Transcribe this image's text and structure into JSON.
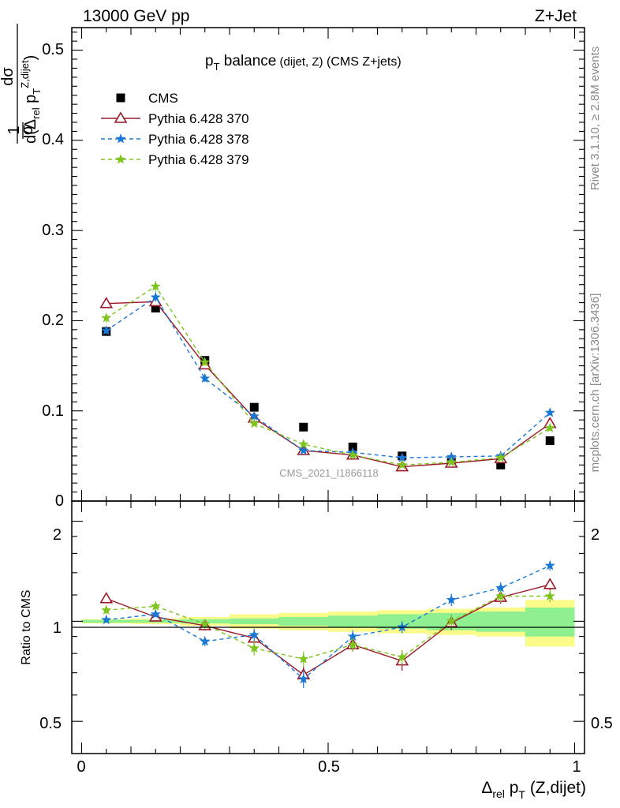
{
  "header": {
    "left": "13000 GeV pp",
    "right": "Z+Jet"
  },
  "side_labels": {
    "rivet": "Rivet 3.1.10, ≥ 2.8M events",
    "mcplots": "mcplots.cern.ch [arXiv:1306.3436]"
  },
  "title": {
    "main": "p",
    "main_sub": "T",
    "main_rest": " balance",
    "small": " (dijet, Z)",
    "rest": " (CMS Z+jets)"
  },
  "watermark": "CMS_2021_I1866118",
  "legend": {
    "items": [
      {
        "label": "CMS",
        "marker": "square",
        "color": "#000000",
        "dashed": false
      },
      {
        "label": "Pythia 6.428 370",
        "marker": "triangle",
        "color": "#9a1a2a",
        "dashed": false
      },
      {
        "label": "Pythia 6.428 378",
        "marker": "star",
        "color": "#1a78d4",
        "dashed": true
      },
      {
        "label": "Pythia 6.428 379",
        "marker": "star",
        "color": "#7ec41e",
        "dashed": true
      }
    ]
  },
  "axes": {
    "main_ylabel": "1/σ dσ/d(Δrel pT Z,dijet)",
    "main_ylabel_parts": {
      "one": "1",
      "sigma": "σ",
      "dsigma": "dσ",
      "d_paren": "d(Δ",
      "rel": "rel",
      "p": " p",
      "T": "T",
      "sup": "Z,dijet",
      "close": ")"
    },
    "ratio_ylabel": "Ratio to CMS",
    "xlabel_parts": {
      "delta": "Δ",
      "rel": "rel",
      "p": " p",
      "T": "T",
      "rest": " (Z,dijet)"
    },
    "main_yticks": [
      "0",
      "0.1",
      "0.2",
      "0.3",
      "0.4",
      "0.5"
    ],
    "ratio_yticks_left": [
      "0.5",
      "1",
      "2"
    ],
    "ratio_yticks_right": [
      "0.5",
      "1",
      "2"
    ],
    "xticks": [
      "0",
      "0.5",
      "1"
    ]
  },
  "chart_data": [
    {
      "type": "scatter",
      "panel": "main",
      "xlabel": "Δrel pT (Z,dijet)",
      "ylabel": "1/σ dσ/d(Δrel pT Z,dijet)",
      "xlim": [
        -0.02,
        1.02
      ],
      "ylim": [
        0,
        0.525
      ],
      "x": [
        0.05,
        0.15,
        0.25,
        0.35,
        0.45,
        0.55,
        0.65,
        0.75,
        0.85,
        0.95
      ],
      "series": [
        {
          "name": "CMS",
          "values": [
            0.188,
            0.214,
            0.156,
            0.104,
            0.082,
            0.06,
            0.05,
            0.043,
            0.04,
            0.067
          ]
        },
        {
          "name": "Pythia 6.428 370",
          "values": [
            0.219,
            0.221,
            0.151,
            0.092,
            0.056,
            0.051,
            0.038,
            0.042,
            0.047,
            0.086
          ]
        },
        {
          "name": "Pythia 6.428 378",
          "values": [
            0.189,
            0.226,
            0.136,
            0.094,
            0.056,
            0.054,
            0.048,
            0.049,
            0.05,
            0.098
          ]
        },
        {
          "name": "Pythia 6.428 379",
          "values": [
            0.203,
            0.238,
            0.154,
            0.086,
            0.063,
            0.051,
            0.04,
            0.043,
            0.048,
            0.081
          ]
        }
      ],
      "errors": [
        [
          0.002,
          0.002,
          0.002,
          0.002,
          0.001,
          0.001,
          0.001,
          0.001,
          0.001,
          0.001
        ],
        [
          0.005,
          0.005,
          0.004,
          0.003,
          0.002,
          0.002,
          0.002,
          0.002,
          0.002,
          0.003
        ],
        [
          0.004,
          0.005,
          0.004,
          0.003,
          0.002,
          0.002,
          0.002,
          0.002,
          0.002,
          0.003
        ],
        [
          0.005,
          0.006,
          0.004,
          0.003,
          0.002,
          0.002,
          0.002,
          0.002,
          0.002,
          0.003
        ]
      ]
    },
    {
      "type": "line",
      "panel": "ratio",
      "xlabel": "Δrel pT (Z,dijet)",
      "ylabel": "Ratio to CMS",
      "xlim": [
        -0.02,
        1.02
      ],
      "ylim": [
        0.4,
        2.3
      ],
      "yscale": "log",
      "x": [
        0.05,
        0.15,
        0.25,
        0.35,
        0.45,
        0.55,
        0.65,
        0.75,
        0.85,
        0.95
      ],
      "bands": {
        "stat": [
          0.01,
          0.01,
          0.015,
          0.02,
          0.03,
          0.04,
          0.05,
          0.06,
          0.07,
          0.1
        ],
        "total": [
          0.015,
          0.02,
          0.03,
          0.05,
          0.06,
          0.07,
          0.08,
          0.09,
          0.1,
          0.16
        ]
      },
      "series": [
        {
          "name": "Pythia 6.428 370",
          "values": [
            1.17,
            1.03,
            0.97,
            0.89,
            0.69,
            0.85,
            0.76,
            0.99,
            1.18,
            1.29
          ]
        },
        {
          "name": "Pythia 6.428 378",
          "values": [
            1.01,
            1.05,
            0.87,
            0.91,
            0.67,
            0.9,
            0.96,
            1.16,
            1.26,
            1.47
          ]
        },
        {
          "name": "Pythia 6.428 379",
          "values": [
            1.08,
            1.11,
            0.98,
            0.83,
            0.77,
            0.85,
            0.78,
            1.0,
            1.19,
            1.19
          ]
        }
      ],
      "errors": [
        [
          0.03,
          0.03,
          0.03,
          0.04,
          0.04,
          0.04,
          0.05,
          0.05,
          0.05,
          0.05
        ],
        [
          0.02,
          0.02,
          0.03,
          0.04,
          0.04,
          0.04,
          0.04,
          0.05,
          0.05,
          0.05
        ],
        [
          0.03,
          0.03,
          0.03,
          0.04,
          0.04,
          0.04,
          0.04,
          0.05,
          0.05,
          0.05
        ]
      ]
    }
  ]
}
